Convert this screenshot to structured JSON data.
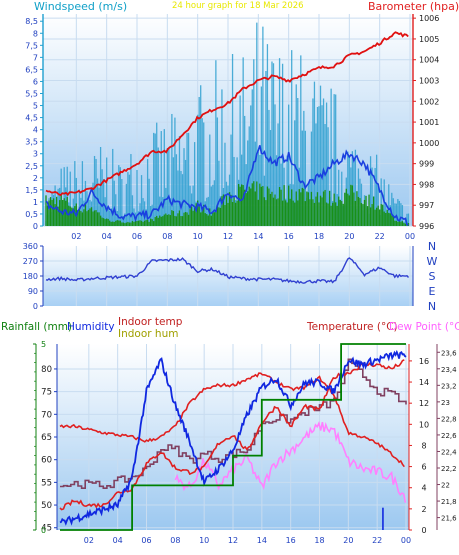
{
  "colors": {
    "wind_avg": "#1f9fd8",
    "wind_gust": "#1a3fe0",
    "wind_fill": "#2fa0d0",
    "green": "#189018",
    "baro": "#e01010",
    "direction": "#3040d0",
    "humidity": "#1028e0",
    "indoor_temp": "#e02020",
    "indoor_hum": "#804060",
    "dewpoint": "#ff80ff",
    "rain": "#008000",
    "title_yellow": "#e8e800",
    "axis_blue": "#2040c0",
    "axis_cyan": "#10a0c8"
  },
  "x_ticks": [
    "02",
    "04",
    "06",
    "08",
    "10",
    "12",
    "14",
    "16",
    "18",
    "20",
    "22",
    "00"
  ],
  "chart_data": [
    {
      "type": "line",
      "name": "wind-baro",
      "title": "24 hour graph for 18 Mar 2026",
      "ylabel_left": "Windspeed (m/s)",
      "ylabel_right": "Barometer (hpa)",
      "ylim_left": [
        0,
        8.8
      ],
      "ylim_right": [
        996,
        1006.2
      ],
      "left_ticks": [
        "0",
        "0,5",
        "1",
        "1,5",
        "2",
        "2,5",
        "3",
        "3,5",
        "4",
        "4,5",
        "5",
        "5,5",
        "6",
        "6,5",
        "7",
        "7,5",
        "8",
        "8,5"
      ],
      "right_ticks": [
        "996",
        "997",
        "998",
        "999",
        "1000",
        "1001",
        "1002",
        "1003",
        "1004",
        "1005",
        "1006"
      ],
      "x_hours": [
        0,
        1,
        2,
        3,
        4,
        5,
        6,
        7,
        8,
        9,
        10,
        11,
        12,
        13,
        14,
        15,
        16,
        17,
        18,
        19,
        20,
        21,
        22,
        23,
        24
      ],
      "gust_envelope": [
        1.4,
        2.5,
        2.8,
        3.0,
        3.6,
        2.6,
        3.8,
        4.2,
        4.5,
        5.0,
        5.6,
        6.8,
        7.2,
        7.0,
        8.6,
        7.6,
        7.5,
        7.0,
        6.2,
        5.6,
        4.2,
        3.6,
        2.8,
        1.4,
        0.8
      ],
      "wind_avg": [
        0.9,
        0.6,
        0.5,
        1.4,
        0.8,
        0.4,
        0.4,
        0.5,
        1.1,
        0.9,
        0.8,
        0.6,
        1.4,
        1.0,
        3.3,
        2.6,
        2.9,
        1.7,
        2.0,
        2.6,
        3.0,
        2.6,
        1.5,
        0.4,
        0.1
      ],
      "wind_green": [
        1.2,
        1.3,
        0.9,
        0.9,
        0.3,
        0.2,
        0.2,
        0.3,
        0.6,
        0.6,
        1.0,
        0.6,
        1.5,
        1.7,
        1.7,
        1.6,
        1.6,
        1.6,
        1.5,
        1.3,
        1.6,
        1.4,
        1.0,
        0.3,
        0.1
      ],
      "barometer": [
        997.7,
        997.5,
        997.6,
        997.8,
        998.2,
        998.6,
        999.0,
        999.6,
        999.6,
        1000.4,
        1001.2,
        1001.6,
        1001.9,
        1002.6,
        1003.0,
        1003.2,
        1003.0,
        1003.3,
        1003.6,
        1003.7,
        1004.2,
        1004.4,
        1004.8,
        1005.3,
        1005.1
      ]
    },
    {
      "type": "line",
      "name": "wind-direction",
      "ylim": [
        0,
        360
      ],
      "left_ticks": [
        "0",
        "90",
        "180",
        "270",
        "360"
      ],
      "compass": [
        "N",
        "W",
        "S",
        "E",
        "N"
      ],
      "x_hours": [
        0,
        1,
        2,
        3,
        4,
        5,
        6,
        7,
        8,
        9,
        10,
        11,
        12,
        13,
        14,
        15,
        16,
        17,
        18,
        19,
        20,
        21,
        22,
        23,
        24
      ],
      "direction": [
        160,
        165,
        155,
        165,
        170,
        175,
        180,
        270,
        275,
        280,
        210,
        220,
        175,
        165,
        160,
        160,
        150,
        145,
        150,
        145,
        290,
        190,
        230,
        180,
        180
      ]
    },
    {
      "type": "line",
      "name": "temp-hum-rain",
      "labels": {
        "rainfall": "Rainfall (mm)",
        "humidity": "Humidity",
        "indoor_temp": "Indoor temp",
        "indoor_hum": "Indoor hum",
        "temperature": "Temperature (°C)",
        "dewpoint": "Dew Point (°C)"
      },
      "hum_ticks": [
        "45",
        "50",
        "55",
        "60",
        "65",
        "70",
        "75",
        "80"
      ],
      "hum_lim": [
        44.5,
        85.5
      ],
      "rain_ticks": [
        "0",
        "5"
      ],
      "rain_lim": [
        0,
        5
      ],
      "temp_ticks": [
        "0",
        "2",
        "4",
        "6",
        "8",
        "10",
        "12",
        "14",
        "16"
      ],
      "temp_lim": [
        0,
        17.6
      ],
      "indoor_ticks": [
        "21,6",
        "21,8",
        "22",
        "22,2",
        "22,4",
        "22,6",
        "22,8",
        "23",
        "23,2",
        "23,4",
        "23,6"
      ],
      "indoor_lim": [
        21.45,
        23.7
      ],
      "x_hours": [
        0,
        1,
        2,
        3,
        4,
        5,
        6,
        7,
        8,
        9,
        10,
        11,
        12,
        13,
        14,
        15,
        16,
        17,
        18,
        19,
        20,
        21,
        22,
        23,
        24
      ],
      "humidity": [
        46,
        47,
        48,
        49,
        50,
        56,
        75,
        82,
        72,
        64,
        55,
        58,
        62,
        70,
        76,
        78,
        72,
        77,
        77,
        75,
        82,
        81,
        82,
        83,
        83
      ],
      "temperature": [
        9.8,
        9.8,
        9.5,
        9.2,
        9.0,
        8.8,
        8.4,
        8.8,
        9.8,
        12.0,
        13.3,
        13.7,
        13.7,
        14.3,
        14.8,
        14.0,
        13.3,
        13.5,
        14.4,
        12.8,
        9.2,
        8.8,
        8.2,
        7.2,
        6.0
      ],
      "dewpoint": [
        null,
        null,
        null,
        null,
        null,
        null,
        null,
        null,
        4.8,
        4.0,
        6.5,
        4.2,
        5.7,
        6.8,
        4.0,
        6.5,
        7.5,
        8.8,
        9.8,
        9.5,
        6.5,
        5.8,
        5.5,
        5.0,
        3.0
      ],
      "indoor_temp": [
        21.7,
        21.8,
        21.75,
        21.75,
        21.9,
        21.95,
        22.25,
        22.4,
        22.2,
        22.15,
        22.2,
        22.5,
        22.6,
        22.4,
        22.75,
        22.95,
        22.7,
        22.95,
        22.9,
        23.3,
        23.35,
        23.45,
        23.45,
        23.4,
        23.5
      ],
      "indoor_hum": [
        4.2,
        4.4,
        4.3,
        4.2,
        4.6,
        5.0,
        5.8,
        7.8,
        7.6,
        6.6,
        7.2,
        6.8,
        7.2,
        7.6,
        10.2,
        10.6,
        10.4,
        11.2,
        11.6,
        12.2,
        15.8,
        14.6,
        13.2,
        12.8,
        11.8
      ],
      "rain_steps": [
        [
          0,
          0
        ],
        [
          4.5,
          0
        ],
        [
          5,
          1.2
        ],
        [
          11,
          1.2
        ],
        [
          12,
          2
        ],
        [
          14,
          3.5
        ],
        [
          19,
          3.5
        ],
        [
          19.5,
          5
        ],
        [
          24,
          5
        ]
      ],
      "rain_bar_hour": 22.4,
      "rain_bar_value": 0.6
    }
  ]
}
